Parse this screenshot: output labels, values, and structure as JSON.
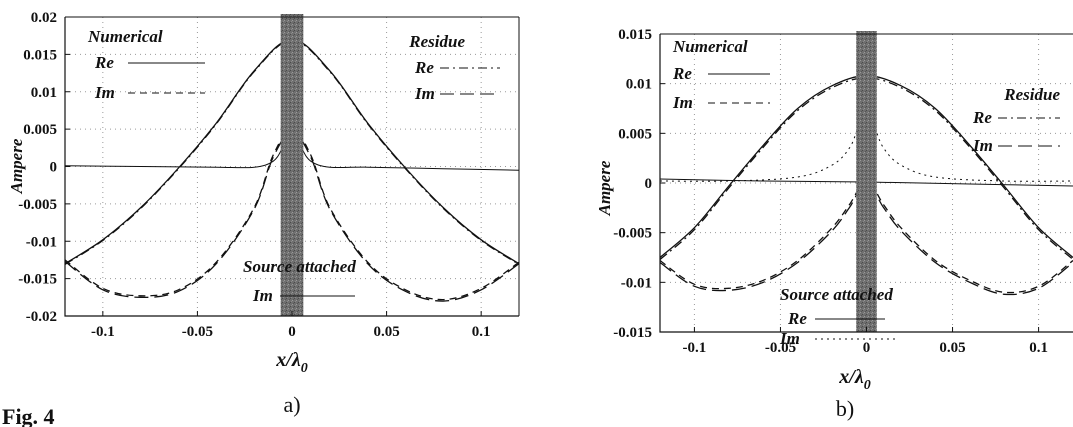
{
  "figure": {
    "caption_a": "a)",
    "caption_b": "b)",
    "figure_label": "Fig. 4"
  },
  "chart_data": [
    {
      "type": "line",
      "panel": "a",
      "xlabel": "x/λ0",
      "ylabel": "Ampere",
      "xlim": [
        -0.12,
        0.12
      ],
      "ylim": [
        -0.02,
        0.02
      ],
      "xticks": [
        -0.1,
        -0.05,
        0,
        0.05,
        0.1
      ],
      "xtick_labels": [
        "-0.1",
        "-0.05",
        "0",
        "0.05",
        "0.1"
      ],
      "yticks": [
        -0.02,
        -0.015,
        -0.01,
        -0.005,
        0,
        0.005,
        0.01,
        0.015,
        0.02
      ],
      "ytick_labels": [
        "-0.02",
        "-0.015",
        "-0.01",
        "-0.005",
        "0",
        "0.005",
        "0.01",
        "0.015",
        "0.02"
      ],
      "grid": true,
      "shaded_band": [
        -0.006,
        0.006
      ],
      "legend_groups": [
        {
          "title": "Numerical",
          "entries": [
            {
              "label": "Re",
              "dash": "solid"
            },
            {
              "label": "Im",
              "dash": "dashed"
            }
          ]
        },
        {
          "title": "Residue",
          "entries": [
            {
              "label": "Re",
              "dash": "dashdot"
            },
            {
              "label": "Im",
              "dash": "longdash"
            }
          ]
        },
        {
          "title": "Source attached",
          "entries": [
            {
              "label": "Im",
              "dash": "solid-thin"
            }
          ]
        }
      ],
      "series": [
        {
          "group": "Numerical",
          "component": "Re",
          "dash": "solid",
          "x": [
            -0.12,
            -0.1,
            -0.08,
            -0.06,
            -0.04,
            -0.02,
            0,
            0.02,
            0.04,
            0.06,
            0.08,
            0.1,
            0.12
          ],
          "y": [
            -0.013,
            -0.0098,
            -0.0055,
            -0.0002,
            0.0058,
            0.0128,
            0.017,
            0.0128,
            0.0058,
            -0.0002,
            -0.0055,
            -0.0098,
            -0.013
          ]
        },
        {
          "group": "Numerical",
          "component": "Im",
          "dash": "dashed",
          "x": [
            -0.12,
            -0.1,
            -0.08,
            -0.06,
            -0.04,
            -0.02,
            -0.01,
            0,
            0.01,
            0.02,
            0.04,
            0.06,
            0.08,
            0.1,
            0.12
          ],
          "y": [
            -0.0125,
            -0.0163,
            -0.0173,
            -0.0165,
            -0.0128,
            -0.0055,
            0.0015,
            0.005,
            0.0015,
            -0.0055,
            -0.0128,
            -0.0165,
            -0.0178,
            -0.0163,
            -0.0128
          ]
        },
        {
          "group": "Residue",
          "component": "Re",
          "dash": "dashdot",
          "x": [
            -0.12,
            -0.1,
            -0.08,
            -0.06,
            -0.04,
            -0.02,
            0,
            0.02,
            0.04,
            0.06,
            0.08,
            0.1,
            0.12
          ],
          "y": [
            -0.0131,
            -0.0099,
            -0.0056,
            -0.0003,
            0.0057,
            0.0127,
            0.0169,
            0.0127,
            0.0057,
            -0.0003,
            -0.0056,
            -0.0099,
            -0.0131
          ]
        },
        {
          "group": "Residue",
          "component": "Im",
          "dash": "longdash",
          "x": [
            -0.12,
            -0.1,
            -0.08,
            -0.06,
            -0.04,
            -0.02,
            -0.01,
            0,
            0.01,
            0.02,
            0.04,
            0.06,
            0.08,
            0.1,
            0.12
          ],
          "y": [
            -0.0127,
            -0.0165,
            -0.0175,
            -0.0167,
            -0.013,
            -0.0057,
            0.0012,
            0.0047,
            0.0012,
            -0.0057,
            -0.013,
            -0.0167,
            -0.018,
            -0.0165,
            -0.013
          ]
        },
        {
          "group": "Source attached",
          "component": "Im",
          "dash": "solid-thin",
          "x": [
            -0.12,
            -0.08,
            -0.04,
            -0.02,
            -0.01,
            -0.005,
            0,
            0.005,
            0.01,
            0.02,
            0.04,
            0.08,
            0.12
          ],
          "y": [
            0.0001,
            0,
            -0.0001,
            -0.0001,
            0.0007,
            0.0025,
            0.0053,
            0.0025,
            0.0007,
            -0.0001,
            -0.0001,
            -0.0003,
            -0.0005
          ]
        }
      ]
    },
    {
      "type": "line",
      "panel": "b",
      "xlabel": "x/λ0",
      "ylabel": "Ampere",
      "xlim": [
        -0.12,
        0.12
      ],
      "ylim": [
        -0.015,
        0.015
      ],
      "xticks": [
        -0.1,
        -0.05,
        0,
        0.05,
        0.1
      ],
      "xtick_labels": [
        "-0.1",
        "-0.05",
        "0",
        "0.05",
        "0.1"
      ],
      "yticks": [
        -0.015,
        -0.01,
        -0.005,
        0,
        0.005,
        0.01,
        0.015
      ],
      "ytick_labels": [
        "-0.015",
        "-0.01",
        "-0.005",
        "0",
        "0.005",
        "0.01",
        "0.015"
      ],
      "grid": true,
      "shaded_band": [
        -0.006,
        0.006
      ],
      "legend_groups": [
        {
          "title": "Numerical",
          "entries": [
            {
              "label": "Re",
              "dash": "solid"
            },
            {
              "label": "Im",
              "dash": "dashed"
            }
          ]
        },
        {
          "title": "Residue",
          "entries": [
            {
              "label": "Re",
              "dash": "dashdot"
            },
            {
              "label": "Im",
              "dash": "longdash"
            }
          ]
        },
        {
          "title": "Source attached",
          "entries": [
            {
              "label": "Re",
              "dash": "solid-thin"
            },
            {
              "label": "Im",
              "dash": "dotted"
            }
          ]
        }
      ],
      "series": [
        {
          "group": "Numerical",
          "component": "Re",
          "dash": "solid",
          "x": [
            -0.12,
            -0.1,
            -0.08,
            -0.06,
            -0.04,
            -0.02,
            0,
            0.02,
            0.04,
            0.06,
            0.08,
            0.1,
            0.12
          ],
          "y": [
            -0.0075,
            -0.0045,
            -0.0003,
            0.0038,
            0.0075,
            0.0098,
            0.0108,
            0.0098,
            0.0075,
            0.0038,
            -0.0003,
            -0.0045,
            -0.0075
          ]
        },
        {
          "group": "Numerical",
          "component": "Im",
          "dash": "dashed",
          "x": [
            -0.12,
            -0.1,
            -0.08,
            -0.06,
            -0.04,
            -0.02,
            -0.01,
            0,
            0.01,
            0.02,
            0.04,
            0.06,
            0.08,
            0.1,
            0.12
          ],
          "y": [
            -0.0078,
            -0.0102,
            -0.0106,
            -0.0098,
            -0.0078,
            -0.0045,
            -0.0022,
            0.0002,
            -0.0022,
            -0.0045,
            -0.0078,
            -0.0098,
            -0.011,
            -0.0104,
            -0.0078
          ]
        },
        {
          "group": "Residue",
          "component": "Re",
          "dash": "dashdot",
          "x": [
            -0.12,
            -0.1,
            -0.08,
            -0.06,
            -0.04,
            -0.02,
            0,
            0.02,
            0.04,
            0.06,
            0.08,
            0.1,
            0.12
          ],
          "y": [
            -0.0077,
            -0.0047,
            -0.0005,
            0.0036,
            0.0073,
            0.0096,
            0.0106,
            0.0096,
            0.0073,
            0.0036,
            -0.0005,
            -0.0047,
            -0.0077
          ]
        },
        {
          "group": "Residue",
          "component": "Im",
          "dash": "longdash",
          "x": [
            -0.12,
            -0.1,
            -0.08,
            -0.06,
            -0.04,
            -0.02,
            -0.01,
            0,
            0.01,
            0.02,
            0.04,
            0.06,
            0.08,
            0.1,
            0.12
          ],
          "y": [
            -0.008,
            -0.0104,
            -0.0108,
            -0.01,
            -0.008,
            -0.0048,
            -0.0025,
            0,
            -0.0025,
            -0.0048,
            -0.008,
            -0.01,
            -0.0112,
            -0.0106,
            -0.008
          ]
        },
        {
          "group": "Source attached",
          "component": "Re",
          "dash": "solid-thin",
          "x": [
            -0.12,
            -0.06,
            0,
            0.06,
            0.12
          ],
          "y": [
            0.0004,
            0.0002,
            0.0001,
            -0.0001,
            -0.0003
          ]
        },
        {
          "group": "Source attached",
          "component": "Im",
          "dash": "dotted",
          "x": [
            -0.12,
            -0.08,
            -0.04,
            -0.02,
            -0.01,
            -0.005,
            0,
            0.005,
            0.01,
            0.02,
            0.04,
            0.08,
            0.12
          ],
          "y": [
            0.0002,
            0.0002,
            0.0006,
            0.0018,
            0.0035,
            0.0055,
            0.0075,
            0.0055,
            0.0035,
            0.0018,
            0.0006,
            0.0002,
            0.0002
          ]
        }
      ]
    }
  ]
}
